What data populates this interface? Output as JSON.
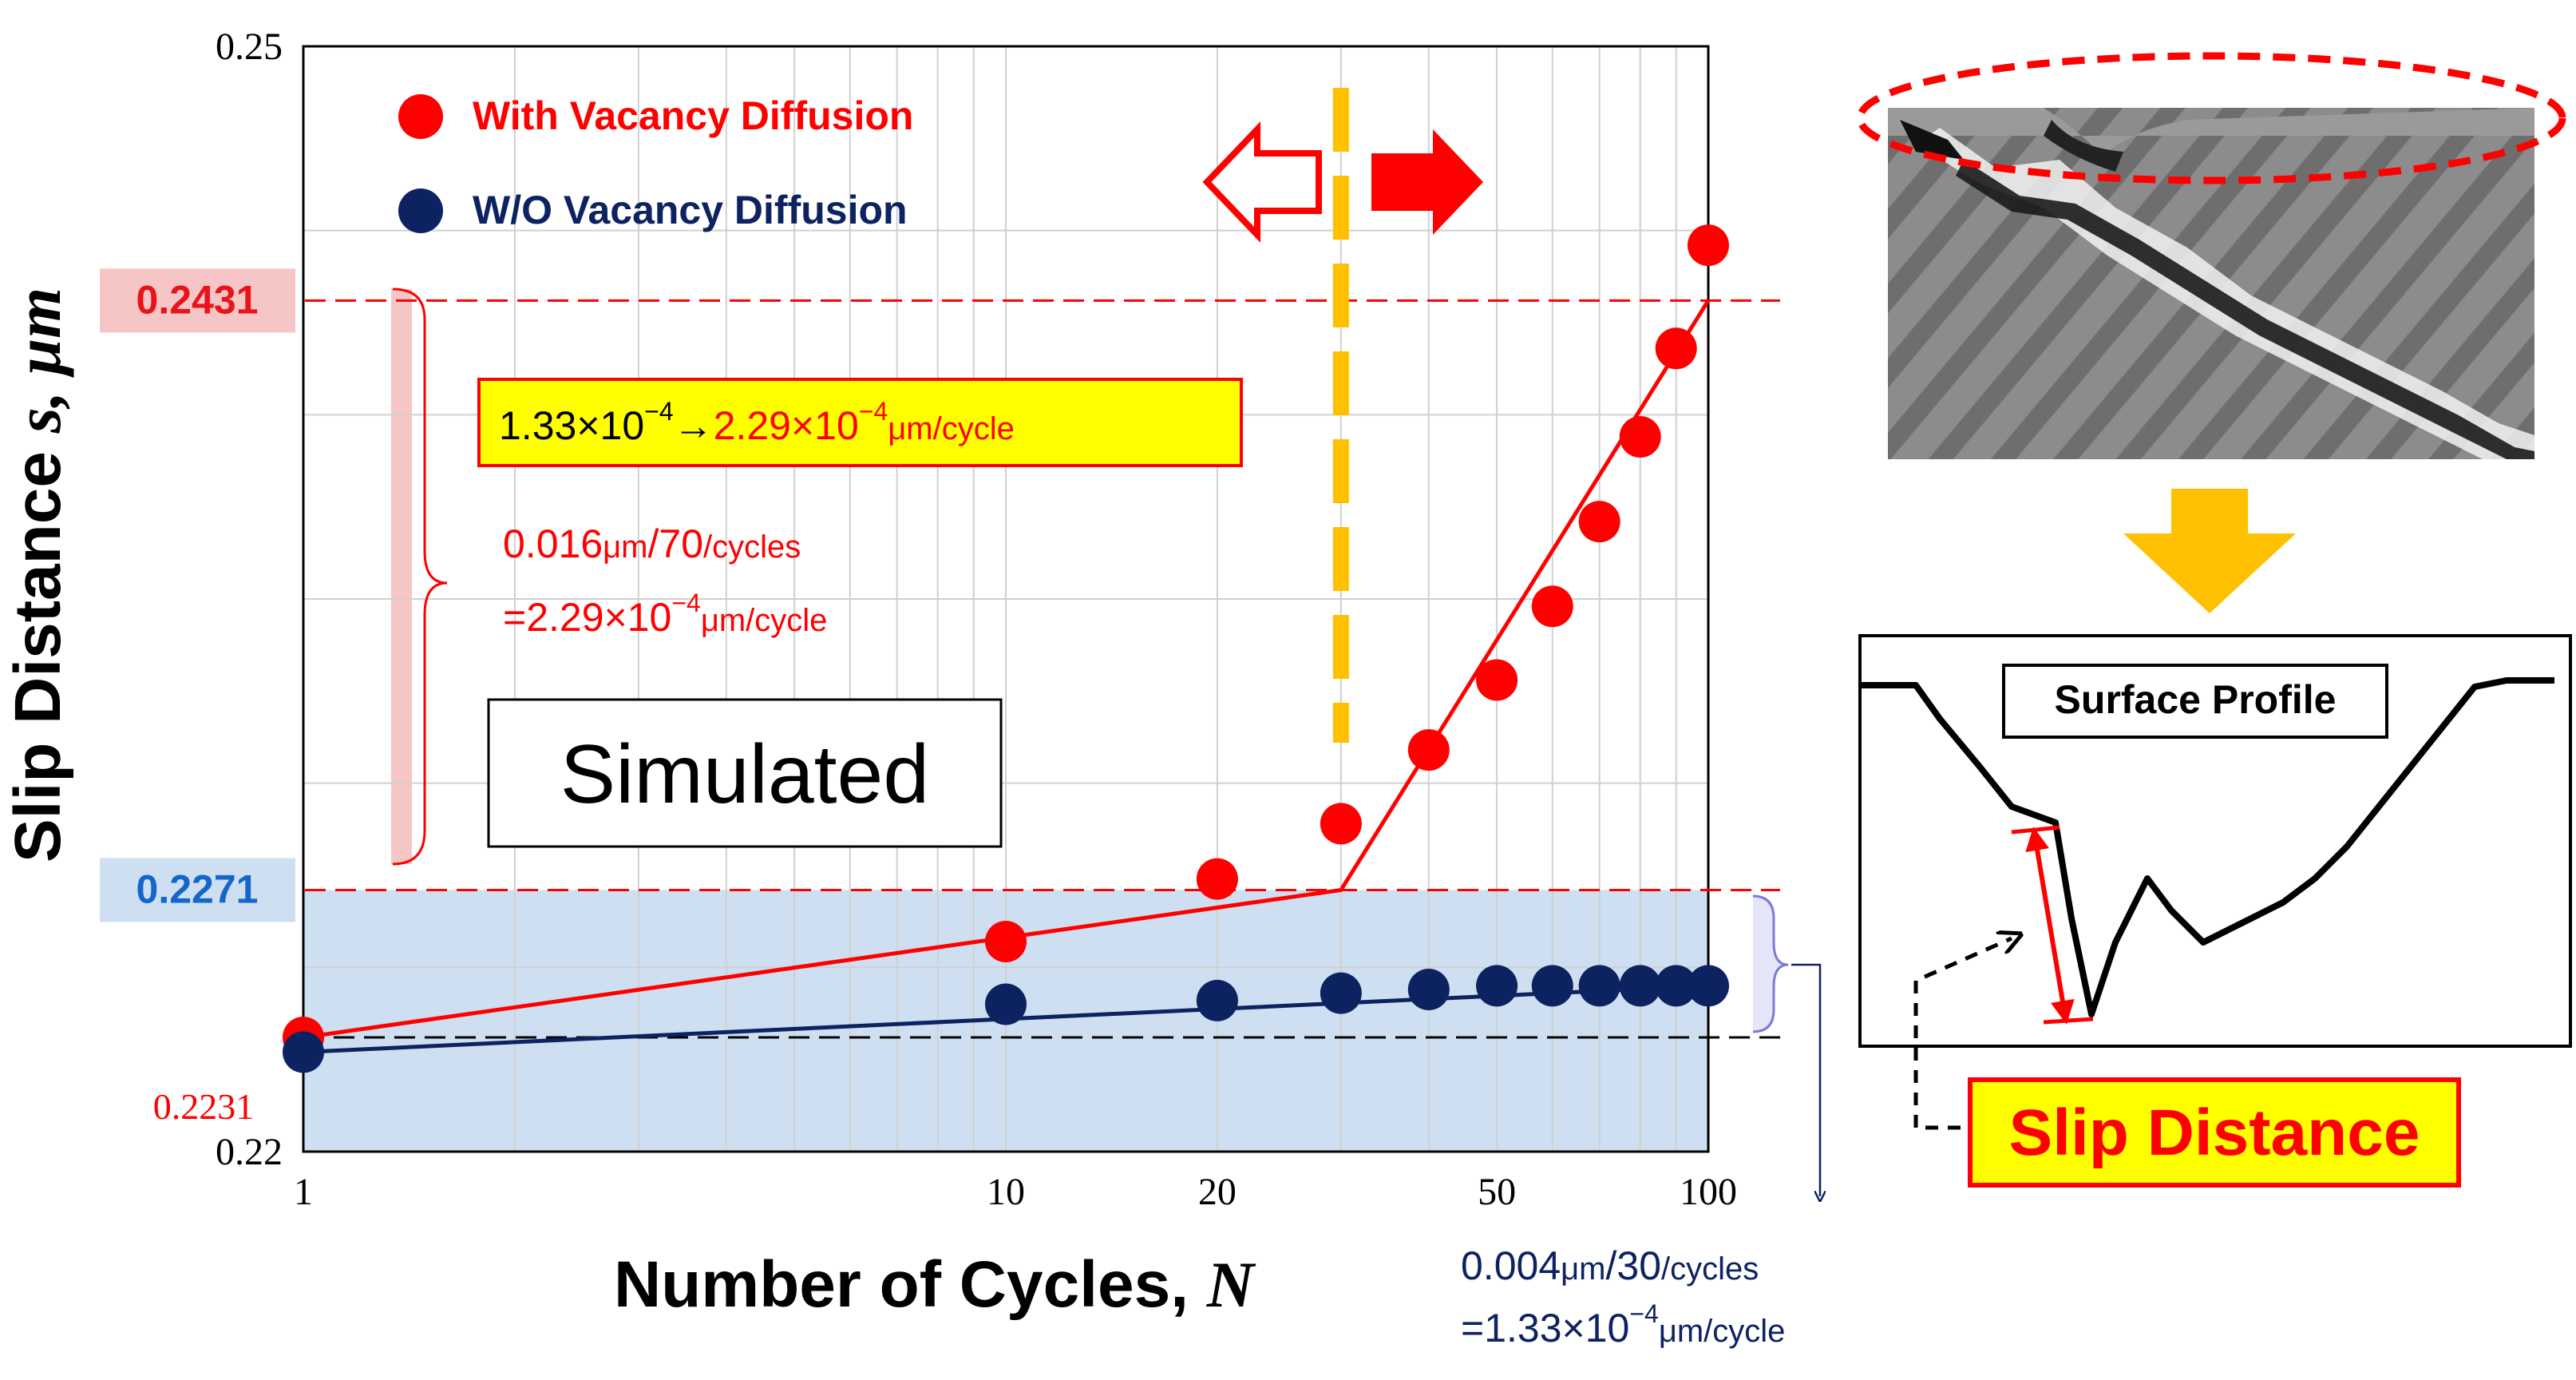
{
  "chart_data": {
    "type": "scatter",
    "x_scale": "log",
    "xlim": [
      1,
      100
    ],
    "ylim": [
      0.22,
      0.25
    ],
    "xlabel": "Number of Cycles, ",
    "xlabel_var": "N",
    "ylabel": "Slip Distance ",
    "ylabel_var": "s, μm",
    "x_ticks": [
      1,
      10,
      20,
      50,
      100
    ],
    "y_ticks": [
      0.22,
      0.25
    ],
    "legend_position": "top-left",
    "grid": true,
    "series": [
      {
        "name": "With Vacancy Diffusion",
        "color": "#ff0000",
        "x": [
          1,
          10,
          20,
          30,
          40,
          50,
          60,
          70,
          80,
          90,
          100
        ],
        "y": [
          0.2231,
          0.2257,
          0.2274,
          0.2289,
          0.2309,
          0.2328,
          0.2348,
          0.2371,
          0.2394,
          0.2418,
          0.2446
        ]
      },
      {
        "name": "W/O Vacancy Diffusion",
        "color": "#0d2261",
        "x": [
          1,
          10,
          20,
          30,
          40,
          50,
          60,
          70,
          80,
          90,
          100
        ],
        "y": [
          0.2227,
          0.224,
          0.2241,
          0.2243,
          0.2244,
          0.2245,
          0.2245,
          0.2245,
          0.2245,
          0.2245,
          0.2245
        ]
      }
    ],
    "fit_lines": [
      {
        "series": "With Vacancy Diffusion",
        "color": "#ff0000",
        "points": [
          [
            1,
            0.2231
          ],
          [
            30,
            0.2271
          ],
          [
            100,
            0.2431
          ]
        ]
      },
      {
        "series": "W/O Vacancy Diffusion",
        "color": "#0d2261",
        "points": [
          [
            1,
            0.2227
          ],
          [
            100,
            0.2245
          ]
        ]
      }
    ],
    "reference_lines": [
      {
        "y": 0.2431,
        "label": "0.2431",
        "color": "#ff0000"
      },
      {
        "y": 0.2271,
        "label": "0.2271",
        "color": "#ff0000"
      },
      {
        "y": 0.2231,
        "label": "0.2231",
        "color": "#000000"
      }
    ],
    "phase_divider_x": 30,
    "annotations": {
      "rate_box": {
        "a": "1.33×10",
        "a_exp": "−4",
        "arrow": "→",
        "b": "2.29×10",
        "b_exp": "−4",
        "unit": "μm/cycle"
      },
      "red_rate": {
        "line1_a": "0.016",
        "line1_unit": "μm",
        "line1_b": "/70",
        "line1_c": "/cycles",
        "line2_a": "=2.29×10",
        "line2_exp": "−4",
        "line2_unit": "μm/cycle"
      },
      "blue_rate": {
        "line1_a": "0.004",
        "line1_unit": "μm",
        "line1_b": "/30",
        "line1_c": "/cycles",
        "line2_a": "=1.33×10",
        "line2_exp": "−4",
        "line2_unit": "μm/cycle"
      },
      "simulated_label": "Simulated"
    }
  },
  "panel": {
    "surface_profile_label": "Surface Profile",
    "slip_distance_label": "Slip Distance"
  },
  "colors": {
    "red": "#ff0000",
    "navy": "#0d2261",
    "blue_band": "#cddff0",
    "pink_band": "#f6c5c5",
    "gold": "#ffc000",
    "yellow": "#ffff00"
  }
}
